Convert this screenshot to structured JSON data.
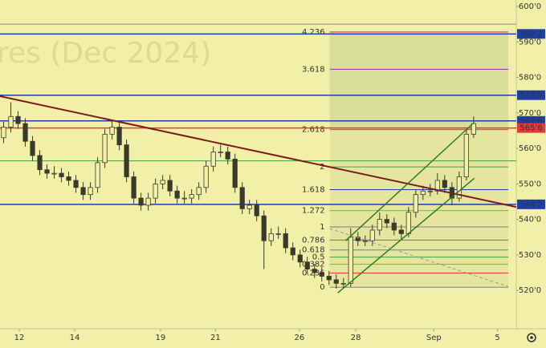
{
  "chart_data": {
    "type": "candlestick",
    "watermark": "res (Dec 2024)",
    "open": [
      563,
      566,
      569,
      567,
      562,
      558,
      554,
      553,
      553,
      552,
      551,
      549,
      547,
      549,
      556,
      564,
      566,
      561,
      552,
      546,
      544,
      546,
      550,
      551,
      548,
      546,
      546,
      547,
      549,
      555,
      559,
      559,
      557,
      549,
      543,
      544,
      541,
      534,
      536,
      536,
      532,
      530,
      528,
      526,
      525,
      524,
      523,
      522,
      522,
      535,
      534,
      534,
      537,
      540,
      539,
      537,
      536,
      542,
      547,
      548,
      548,
      551,
      549,
      546,
      552,
      564
    ],
    "high": [
      567.5,
      573,
      570.5,
      568.5,
      563.5,
      559.5,
      555.5,
      555,
      554.5,
      553.5,
      552.5,
      550.5,
      550.5,
      557.5,
      565.5,
      568,
      567.5,
      562.5,
      553.5,
      547.5,
      547.5,
      551.5,
      552.5,
      552.5,
      549.5,
      548,
      548.5,
      550.5,
      556.5,
      560.5,
      561,
      560.5,
      558.5,
      550.5,
      545.5,
      545.5,
      542.5,
      537.5,
      538,
      537.5,
      533.5,
      531.5,
      529.5,
      527.5,
      526.5,
      525.5,
      524.5,
      523.5,
      537.5,
      536.5,
      535.5,
      538.5,
      542,
      541.5,
      540.5,
      538.5,
      543.5,
      548.5,
      549.5,
      550,
      553,
      552.5,
      550.5,
      553.5,
      565.5,
      569
    ],
    "low": [
      561.5,
      564.5,
      565.5,
      560.5,
      556.5,
      552.5,
      551.5,
      551.5,
      550.5,
      549.5,
      547.5,
      545.5,
      545.5,
      547.5,
      554.5,
      562.5,
      559.5,
      550.5,
      544.5,
      542.5,
      542.5,
      544.5,
      548.5,
      546.5,
      544.5,
      544.5,
      544.5,
      545.5,
      547.5,
      553.5,
      557.5,
      555.5,
      547.5,
      541.5,
      541.5,
      539.5,
      526,
      532.5,
      534.5,
      530.5,
      528.5,
      526.5,
      524.5,
      523.5,
      522.5,
      521.5,
      520.5,
      520.5,
      521,
      532.5,
      532.5,
      532.5,
      535.5,
      537.5,
      535.5,
      534.5,
      535,
      540.5,
      545.5,
      546.5,
      547,
      547.5,
      544,
      545,
      551,
      563
    ],
    "close": [
      566,
      569,
      567,
      562,
      558,
      554,
      553,
      553,
      552,
      551,
      549,
      547,
      549,
      556,
      564,
      566,
      561,
      552,
      546,
      544,
      546,
      550,
      551,
      548,
      546,
      546,
      547,
      549,
      555,
      559,
      559,
      557,
      549,
      543,
      544,
      541,
      534,
      536,
      536,
      532,
      530,
      528,
      526,
      525,
      524,
      523,
      522,
      522,
      535,
      534,
      534,
      537,
      540,
      539,
      537,
      536,
      542,
      547,
      548,
      548,
      551,
      549,
      546,
      552,
      564,
      567
    ],
    "candle_color": "#3a3a2a",
    "xlim": [
      0,
      71.4
    ],
    "xticks": [
      {
        "value": 2.67,
        "label": "12"
      },
      {
        "value": 10.33,
        "label": "14"
      },
      {
        "value": 22.2,
        "label": "19"
      },
      {
        "value": 29.8,
        "label": "21"
      },
      {
        "value": 41.4,
        "label": "26"
      },
      {
        "value": 49.2,
        "label": "28"
      },
      {
        "value": 60,
        "label": "Sep"
      },
      {
        "value": 68.8,
        "label": "5"
      }
    ],
    "ylim": [
      514.4,
      600
    ],
    "yticks": [
      {
        "value": 600,
        "label": "600'0"
      },
      {
        "value": 590,
        "label": "590'0"
      },
      {
        "value": 580,
        "label": "580'0"
      },
      {
        "value": 570,
        "label": "570'0"
      },
      {
        "value": 560,
        "label": "560'0"
      },
      {
        "value": 550,
        "label": "550'0"
      },
      {
        "value": 540,
        "label": "540'0"
      },
      {
        "value": 530,
        "label": "530'0"
      },
      {
        "value": 520,
        "label": "520'0"
      }
    ],
    "levels": [
      {
        "value": 595,
        "color": "#8a8a80"
      },
      {
        "value": 592.25,
        "label": "592'2",
        "color": "#1c3fa8"
      },
      {
        "value": 575,
        "label": "575'0",
        "color": "#1c3fa8"
      },
      {
        "value": 567.75,
        "label": "567'6",
        "color": "#1c3fa8"
      },
      {
        "value": 565.75,
        "label": "565'6",
        "color": "#e53935"
      },
      {
        "value": 556.5,
        "color": "#3ca33c"
      },
      {
        "value": 544.25,
        "label": "544'2",
        "color": "#1c3fa8"
      }
    ],
    "trend_lines": [
      {
        "from": [
          0,
          574.7
        ],
        "to": [
          71.4,
          543.5
        ],
        "color": "#7b1c1c",
        "width": 2
      },
      {
        "from": [
          47.8,
          534
        ],
        "to": [
          65.3,
          566.8
        ],
        "color": "#2e7d1e",
        "width": 1.5
      },
      {
        "from": [
          46.7,
          519.3
        ],
        "to": [
          65.6,
          551.6
        ],
        "color": "#2e7d1e",
        "width": 1.5
      },
      {
        "from": [
          45.6,
          537.4
        ],
        "to": [
          70.3,
          521.1
        ],
        "color": "#999999",
        "width": 1,
        "dashed": true
      }
    ],
    "fib_x": [
      45.6,
      70.3
    ],
    "fib_levels": [
      {
        "ratio": 0,
        "value": 520.9,
        "color": "#808080"
      },
      {
        "ratio": 0.236,
        "value": 524.9,
        "color": "#e53935"
      },
      {
        "ratio": 0.382,
        "value": 527.4,
        "color": "#7cb342"
      },
      {
        "ratio": 0.5,
        "value": 529.4,
        "color": "#43a047"
      },
      {
        "ratio": 0.618,
        "value": 531.4,
        "color": "#26a69a"
      },
      {
        "ratio": 0.786,
        "value": 534.2,
        "color": "#3f86b5"
      },
      {
        "ratio": 1,
        "value": 537.9,
        "color": "#808080"
      },
      {
        "ratio": 1.272,
        "value": 542.5,
        "color": "#7cb342"
      },
      {
        "ratio": 1.618,
        "value": 548.4,
        "color": "#1c3fa8"
      },
      {
        "ratio": 2,
        "value": 554.8,
        "color": "#43a047"
      },
      {
        "ratio": 2.618,
        "value": 565.3,
        "color": "#e53935"
      },
      {
        "ratio": 3.618,
        "value": 582.3,
        "color": "#9c27b0"
      },
      {
        "ratio": 4.236,
        "value": 592.8,
        "color": "#e91e63"
      }
    ]
  }
}
